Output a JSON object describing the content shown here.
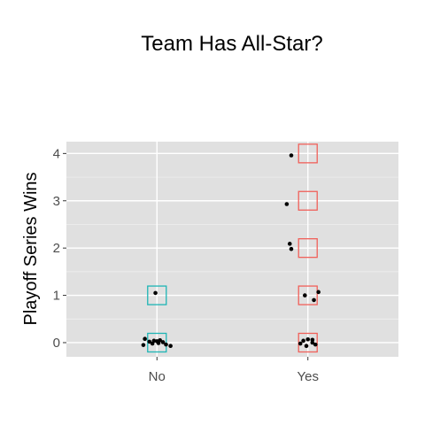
{
  "chart_data": {
    "type": "scatter",
    "title": "Team Has All-Star?",
    "xlabel": "",
    "ylabel": "Playoff Series Wins",
    "categories": [
      "No",
      "Yes"
    ],
    "y_ticks": [
      0,
      1,
      2,
      3,
      4
    ],
    "ylim": [
      -0.3,
      4.25
    ],
    "grid": true,
    "legend": "none",
    "panel_background": "#e0e0e0",
    "grid_color": "#ffffff",
    "point_color": "#000000",
    "box_colors": [
      "#1fb5b5",
      "#f0605a"
    ],
    "boxes": [
      {
        "category": "No",
        "y": 0
      },
      {
        "category": "No",
        "y": 1
      },
      {
        "category": "Yes",
        "y": 0
      },
      {
        "category": "Yes",
        "y": 1
      },
      {
        "category": "Yes",
        "y": 2
      },
      {
        "category": "Yes",
        "y": 3
      },
      {
        "category": "Yes",
        "y": 4
      }
    ],
    "points": [
      {
        "category": "No",
        "jitter": -0.08,
        "y": 0.08
      },
      {
        "category": "No",
        "jitter": -0.05,
        "y": 0.02
      },
      {
        "category": "No",
        "jitter": -0.02,
        "y": 0.04
      },
      {
        "category": "No",
        "jitter": 0.0,
        "y": 0.03
      },
      {
        "category": "No",
        "jitter": 0.02,
        "y": 0.05
      },
      {
        "category": "No",
        "jitter": 0.04,
        "y": 0.01
      },
      {
        "category": "No",
        "jitter": -0.03,
        "y": -0.02
      },
      {
        "category": "No",
        "jitter": 0.06,
        "y": -0.04
      },
      {
        "category": "No",
        "jitter": -0.09,
        "y": -0.05
      },
      {
        "category": "No",
        "jitter": 0.09,
        "y": -0.07
      },
      {
        "category": "No",
        "jitter": 0.01,
        "y": -0.01
      },
      {
        "category": "No",
        "jitter": -0.01,
        "y": 1.05
      },
      {
        "category": "Yes",
        "jitter": -0.05,
        "y": -0.02
      },
      {
        "category": "Yes",
        "jitter": -0.03,
        "y": 0.04
      },
      {
        "category": "Yes",
        "jitter": -0.01,
        "y": -0.07
      },
      {
        "category": "Yes",
        "jitter": 0.0,
        "y": 0.07
      },
      {
        "category": "Yes",
        "jitter": 0.03,
        "y": 0.06
      },
      {
        "category": "Yes",
        "jitter": 0.05,
        "y": -0.04
      },
      {
        "category": "Yes",
        "jitter": 0.03,
        "y": 0.0
      },
      {
        "category": "Yes",
        "jitter": -0.02,
        "y": 1.0
      },
      {
        "category": "Yes",
        "jitter": 0.04,
        "y": 0.9
      },
      {
        "category": "Yes",
        "jitter": 0.07,
        "y": 1.07
      },
      {
        "category": "Yes",
        "jitter": -0.12,
        "y": 2.09
      },
      {
        "category": "Yes",
        "jitter": -0.11,
        "y": 1.98
      },
      {
        "category": "Yes",
        "jitter": -0.14,
        "y": 2.93
      },
      {
        "category": "Yes",
        "jitter": -0.11,
        "y": 3.96
      }
    ]
  }
}
